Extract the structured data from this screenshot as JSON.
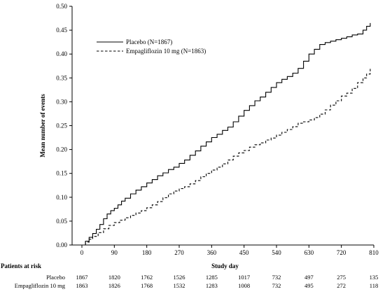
{
  "chart_data": {
    "type": "line",
    "title": "",
    "xlabel": "Study day",
    "ylabel": "Mean number of events",
    "xlim": [
      0,
      810
    ],
    "ylim": [
      0,
      0.5
    ],
    "xticks": [
      0,
      90,
      180,
      270,
      360,
      450,
      540,
      630,
      720,
      810
    ],
    "yticks": [
      0.0,
      0.05,
      0.1,
      0.15,
      0.2,
      0.25,
      0.3,
      0.35,
      0.4,
      0.45,
      0.5
    ],
    "grid": false,
    "legend_position": "top-left",
    "series": [
      {
        "name": "Placebo (N=1867)",
        "style": "solid",
        "color": "#000000",
        "points": [
          [
            0,
            0
          ],
          [
            10,
            0.008
          ],
          [
            20,
            0.016
          ],
          [
            30,
            0.024
          ],
          [
            40,
            0.033
          ],
          [
            50,
            0.043
          ],
          [
            60,
            0.055
          ],
          [
            70,
            0.065
          ],
          [
            80,
            0.072
          ],
          [
            90,
            0.077
          ],
          [
            100,
            0.084
          ],
          [
            110,
            0.092
          ],
          [
            120,
            0.098
          ],
          [
            135,
            0.107
          ],
          [
            150,
            0.115
          ],
          [
            165,
            0.122
          ],
          [
            180,
            0.13
          ],
          [
            195,
            0.137
          ],
          [
            210,
            0.145
          ],
          [
            225,
            0.151
          ],
          [
            240,
            0.158
          ],
          [
            255,
            0.163
          ],
          [
            270,
            0.171
          ],
          [
            285,
            0.178
          ],
          [
            300,
            0.188
          ],
          [
            315,
            0.197
          ],
          [
            330,
            0.207
          ],
          [
            345,
            0.216
          ],
          [
            360,
            0.225
          ],
          [
            375,
            0.232
          ],
          [
            390,
            0.24
          ],
          [
            405,
            0.247
          ],
          [
            420,
            0.258
          ],
          [
            435,
            0.27
          ],
          [
            450,
            0.282
          ],
          [
            465,
            0.292
          ],
          [
            480,
            0.302
          ],
          [
            495,
            0.31
          ],
          [
            510,
            0.32
          ],
          [
            525,
            0.33
          ],
          [
            540,
            0.34
          ],
          [
            555,
            0.347
          ],
          [
            570,
            0.353
          ],
          [
            585,
            0.36
          ],
          [
            600,
            0.37
          ],
          [
            615,
            0.385
          ],
          [
            630,
            0.4
          ],
          [
            645,
            0.41
          ],
          [
            660,
            0.42
          ],
          [
            675,
            0.424
          ],
          [
            690,
            0.427
          ],
          [
            705,
            0.43
          ],
          [
            720,
            0.433
          ],
          [
            735,
            0.436
          ],
          [
            750,
            0.44
          ],
          [
            765,
            0.442
          ],
          [
            780,
            0.45
          ],
          [
            790,
            0.458
          ],
          [
            800,
            0.465
          ]
        ]
      },
      {
        "name": "Empagliflozin 10 mg (N=1863)",
        "style": "dashed",
        "color": "#000000",
        "points": [
          [
            0,
            0
          ],
          [
            10,
            0.006
          ],
          [
            20,
            0.012
          ],
          [
            30,
            0.018
          ],
          [
            45,
            0.026
          ],
          [
            60,
            0.034
          ],
          [
            75,
            0.041
          ],
          [
            90,
            0.047
          ],
          [
            105,
            0.052
          ],
          [
            120,
            0.057
          ],
          [
            135,
            0.062
          ],
          [
            150,
            0.067
          ],
          [
            165,
            0.072
          ],
          [
            180,
            0.078
          ],
          [
            195,
            0.084
          ],
          [
            210,
            0.091
          ],
          [
            225,
            0.099
          ],
          [
            240,
            0.107
          ],
          [
            255,
            0.113
          ],
          [
            270,
            0.118
          ],
          [
            285,
            0.122
          ],
          [
            300,
            0.128
          ],
          [
            315,
            0.135
          ],
          [
            330,
            0.143
          ],
          [
            345,
            0.15
          ],
          [
            360,
            0.157
          ],
          [
            375,
            0.163
          ],
          [
            390,
            0.17
          ],
          [
            405,
            0.178
          ],
          [
            420,
            0.186
          ],
          [
            435,
            0.193
          ],
          [
            450,
            0.198
          ],
          [
            465,
            0.205
          ],
          [
            480,
            0.21
          ],
          [
            495,
            0.214
          ],
          [
            510,
            0.22
          ],
          [
            525,
            0.224
          ],
          [
            540,
            0.23
          ],
          [
            555,
            0.236
          ],
          [
            570,
            0.242
          ],
          [
            585,
            0.248
          ],
          [
            600,
            0.255
          ],
          [
            615,
            0.258
          ],
          [
            630,
            0.262
          ],
          [
            645,
            0.267
          ],
          [
            660,
            0.274
          ],
          [
            675,
            0.283
          ],
          [
            690,
            0.293
          ],
          [
            705,
            0.302
          ],
          [
            720,
            0.312
          ],
          [
            735,
            0.318
          ],
          [
            750,
            0.328
          ],
          [
            765,
            0.34
          ],
          [
            780,
            0.35
          ],
          [
            790,
            0.358
          ],
          [
            800,
            0.37
          ]
        ]
      }
    ],
    "at_risk": {
      "title": "Patients at risk",
      "times": [
        0,
        90,
        180,
        270,
        360,
        450,
        540,
        630,
        720,
        810
      ],
      "rows": [
        {
          "label": "Placebo",
          "values": [
            "1867",
            "1820",
            "1762",
            "1526",
            "1285",
            "1017",
            "732",
            "497",
            "275",
            "135"
          ]
        },
        {
          "label": "Empagliflozin 10 mg",
          "values": [
            "1863",
            "1826",
            "1768",
            "1532",
            "1283",
            "1008",
            "732",
            "495",
            "272",
            "118"
          ]
        }
      ]
    }
  }
}
